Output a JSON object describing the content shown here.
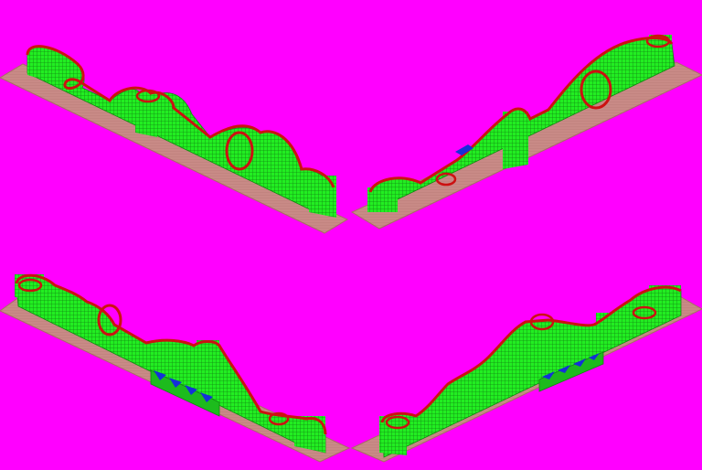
{
  "sprite_sheet": {
    "description_free": true,
    "background_color": "#ff00ff",
    "colors": {
      "ground": "#c88a86",
      "ground_edge": "#a86a66",
      "support_fill": "#22ee22",
      "support_grid": "#118811",
      "track_rail": "#cc1111",
      "track_shadow": "#660000",
      "station_blue": "#1530d8",
      "station_green": "#1dbb1d"
    },
    "views": [
      {
        "id": "view-north-west",
        "has_station": false
      },
      {
        "id": "view-north-east",
        "has_station": true
      },
      {
        "id": "view-south-west",
        "has_station": true
      },
      {
        "id": "view-south-east",
        "has_station": true
      }
    ]
  }
}
